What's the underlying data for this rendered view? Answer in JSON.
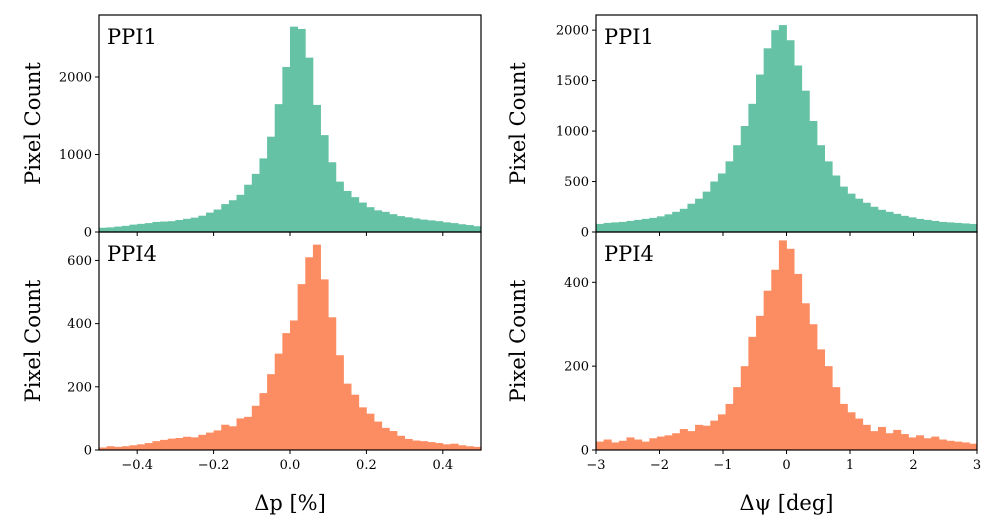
{
  "chart_data": [
    {
      "type": "bar",
      "panel": "top-left",
      "label": "PPI1",
      "ylabel": "Pixel Count",
      "xlabel": "",
      "xlim": [
        -0.5,
        0.5
      ],
      "ylim": [
        0,
        2800
      ],
      "yticks": [
        0,
        1000,
        2000
      ],
      "ytick_labels": [
        "0",
        "1000",
        "2000"
      ],
      "xticks": [
        -0.4,
        -0.2,
        0.0,
        0.2,
        0.4
      ],
      "xtick_labels": [],
      "color": "#66c2a5",
      "bin_edges_start": -0.5,
      "bin_width": 0.02,
      "values": [
        55,
        60,
        70,
        80,
        95,
        105,
        115,
        130,
        135,
        140,
        155,
        170,
        185,
        210,
        250,
        290,
        360,
        410,
        480,
        610,
        750,
        950,
        1230,
        1650,
        2130,
        2650,
        2620,
        2250,
        1640,
        1250,
        900,
        650,
        530,
        450,
        380,
        320,
        280,
        260,
        230,
        205,
        190,
        175,
        160,
        150,
        140,
        125,
        115,
        100,
        90,
        75
      ]
    },
    {
      "type": "bar",
      "panel": "bottom-left",
      "label": "PPI4",
      "ylabel": "Pixel Count",
      "xlabel": "Δp [%]",
      "xlim": [
        -0.5,
        0.5
      ],
      "ylim": [
        0,
        690
      ],
      "yticks": [
        0,
        200,
        400,
        600
      ],
      "ytick_labels": [
        "0",
        "200",
        "400",
        "600"
      ],
      "xticks": [
        -0.4,
        -0.2,
        0.0,
        0.2,
        0.4
      ],
      "xtick_labels": [
        "−0.4",
        "−0.2",
        "0.0",
        "0.2",
        "0.4"
      ],
      "color": "#fc8d62",
      "bin_edges_start": -0.5,
      "bin_width": 0.02,
      "values": [
        8,
        12,
        10,
        12,
        15,
        18,
        22,
        28,
        32,
        36,
        38,
        42,
        40,
        48,
        55,
        62,
        80,
        75,
        100,
        105,
        140,
        180,
        240,
        305,
        370,
        410,
        525,
        610,
        650,
        540,
        420,
        300,
        210,
        175,
        135,
        115,
        90,
        70,
        60,
        45,
        35,
        30,
        28,
        25,
        22,
        18,
        20,
        15,
        12,
        10
      ]
    },
    {
      "type": "bar",
      "panel": "top-right",
      "label": "PPI1",
      "ylabel": "Pixel Count",
      "xlabel": "",
      "xlim": [
        -3,
        3
      ],
      "ylim": [
        0,
        2150
      ],
      "yticks": [
        0,
        500,
        1000,
        1500,
        2000
      ],
      "ytick_labels": [
        "0",
        "500",
        "1000",
        "1500",
        "2000"
      ],
      "xticks": [
        -3,
        -2,
        -1,
        0,
        1,
        2,
        3
      ],
      "xtick_labels": [],
      "color": "#66c2a5",
      "bin_edges_start": -3,
      "bin_width": 0.12,
      "values": [
        80,
        90,
        95,
        100,
        110,
        120,
        130,
        140,
        155,
        175,
        200,
        230,
        280,
        330,
        400,
        500,
        580,
        700,
        860,
        1050,
        1270,
        1560,
        1820,
        2000,
        2050,
        1900,
        1650,
        1400,
        1100,
        860,
        700,
        560,
        450,
        380,
        330,
        290,
        250,
        220,
        200,
        180,
        160,
        145,
        130,
        120,
        110,
        100,
        95,
        90,
        85,
        80
      ]
    },
    {
      "type": "bar",
      "panel": "bottom-right",
      "label": "PPI4",
      "ylabel": "Pixel Count",
      "xlabel": "Δψ [deg]",
      "xlim": [
        -3,
        3
      ],
      "ylim": [
        0,
        520
      ],
      "yticks": [
        0,
        200,
        400
      ],
      "ytick_labels": [
        "0",
        "200",
        "400"
      ],
      "xticks": [
        -3,
        -2,
        -1,
        0,
        1,
        2,
        3
      ],
      "xtick_labels": [
        "−3",
        "−2",
        "−1",
        "0",
        "1",
        "2",
        "3"
      ],
      "color": "#fc8d62",
      "bin_edges_start": -3,
      "bin_width": 0.12,
      "values": [
        20,
        25,
        18,
        22,
        30,
        25,
        20,
        28,
        32,
        35,
        40,
        50,
        45,
        60,
        58,
        70,
        85,
        110,
        150,
        200,
        270,
        320,
        380,
        430,
        500,
        480,
        420,
        350,
        300,
        240,
        200,
        150,
        110,
        90,
        75,
        60,
        45,
        55,
        40,
        48,
        38,
        30,
        35,
        28,
        32,
        25,
        22,
        20,
        18,
        15
      ]
    }
  ]
}
